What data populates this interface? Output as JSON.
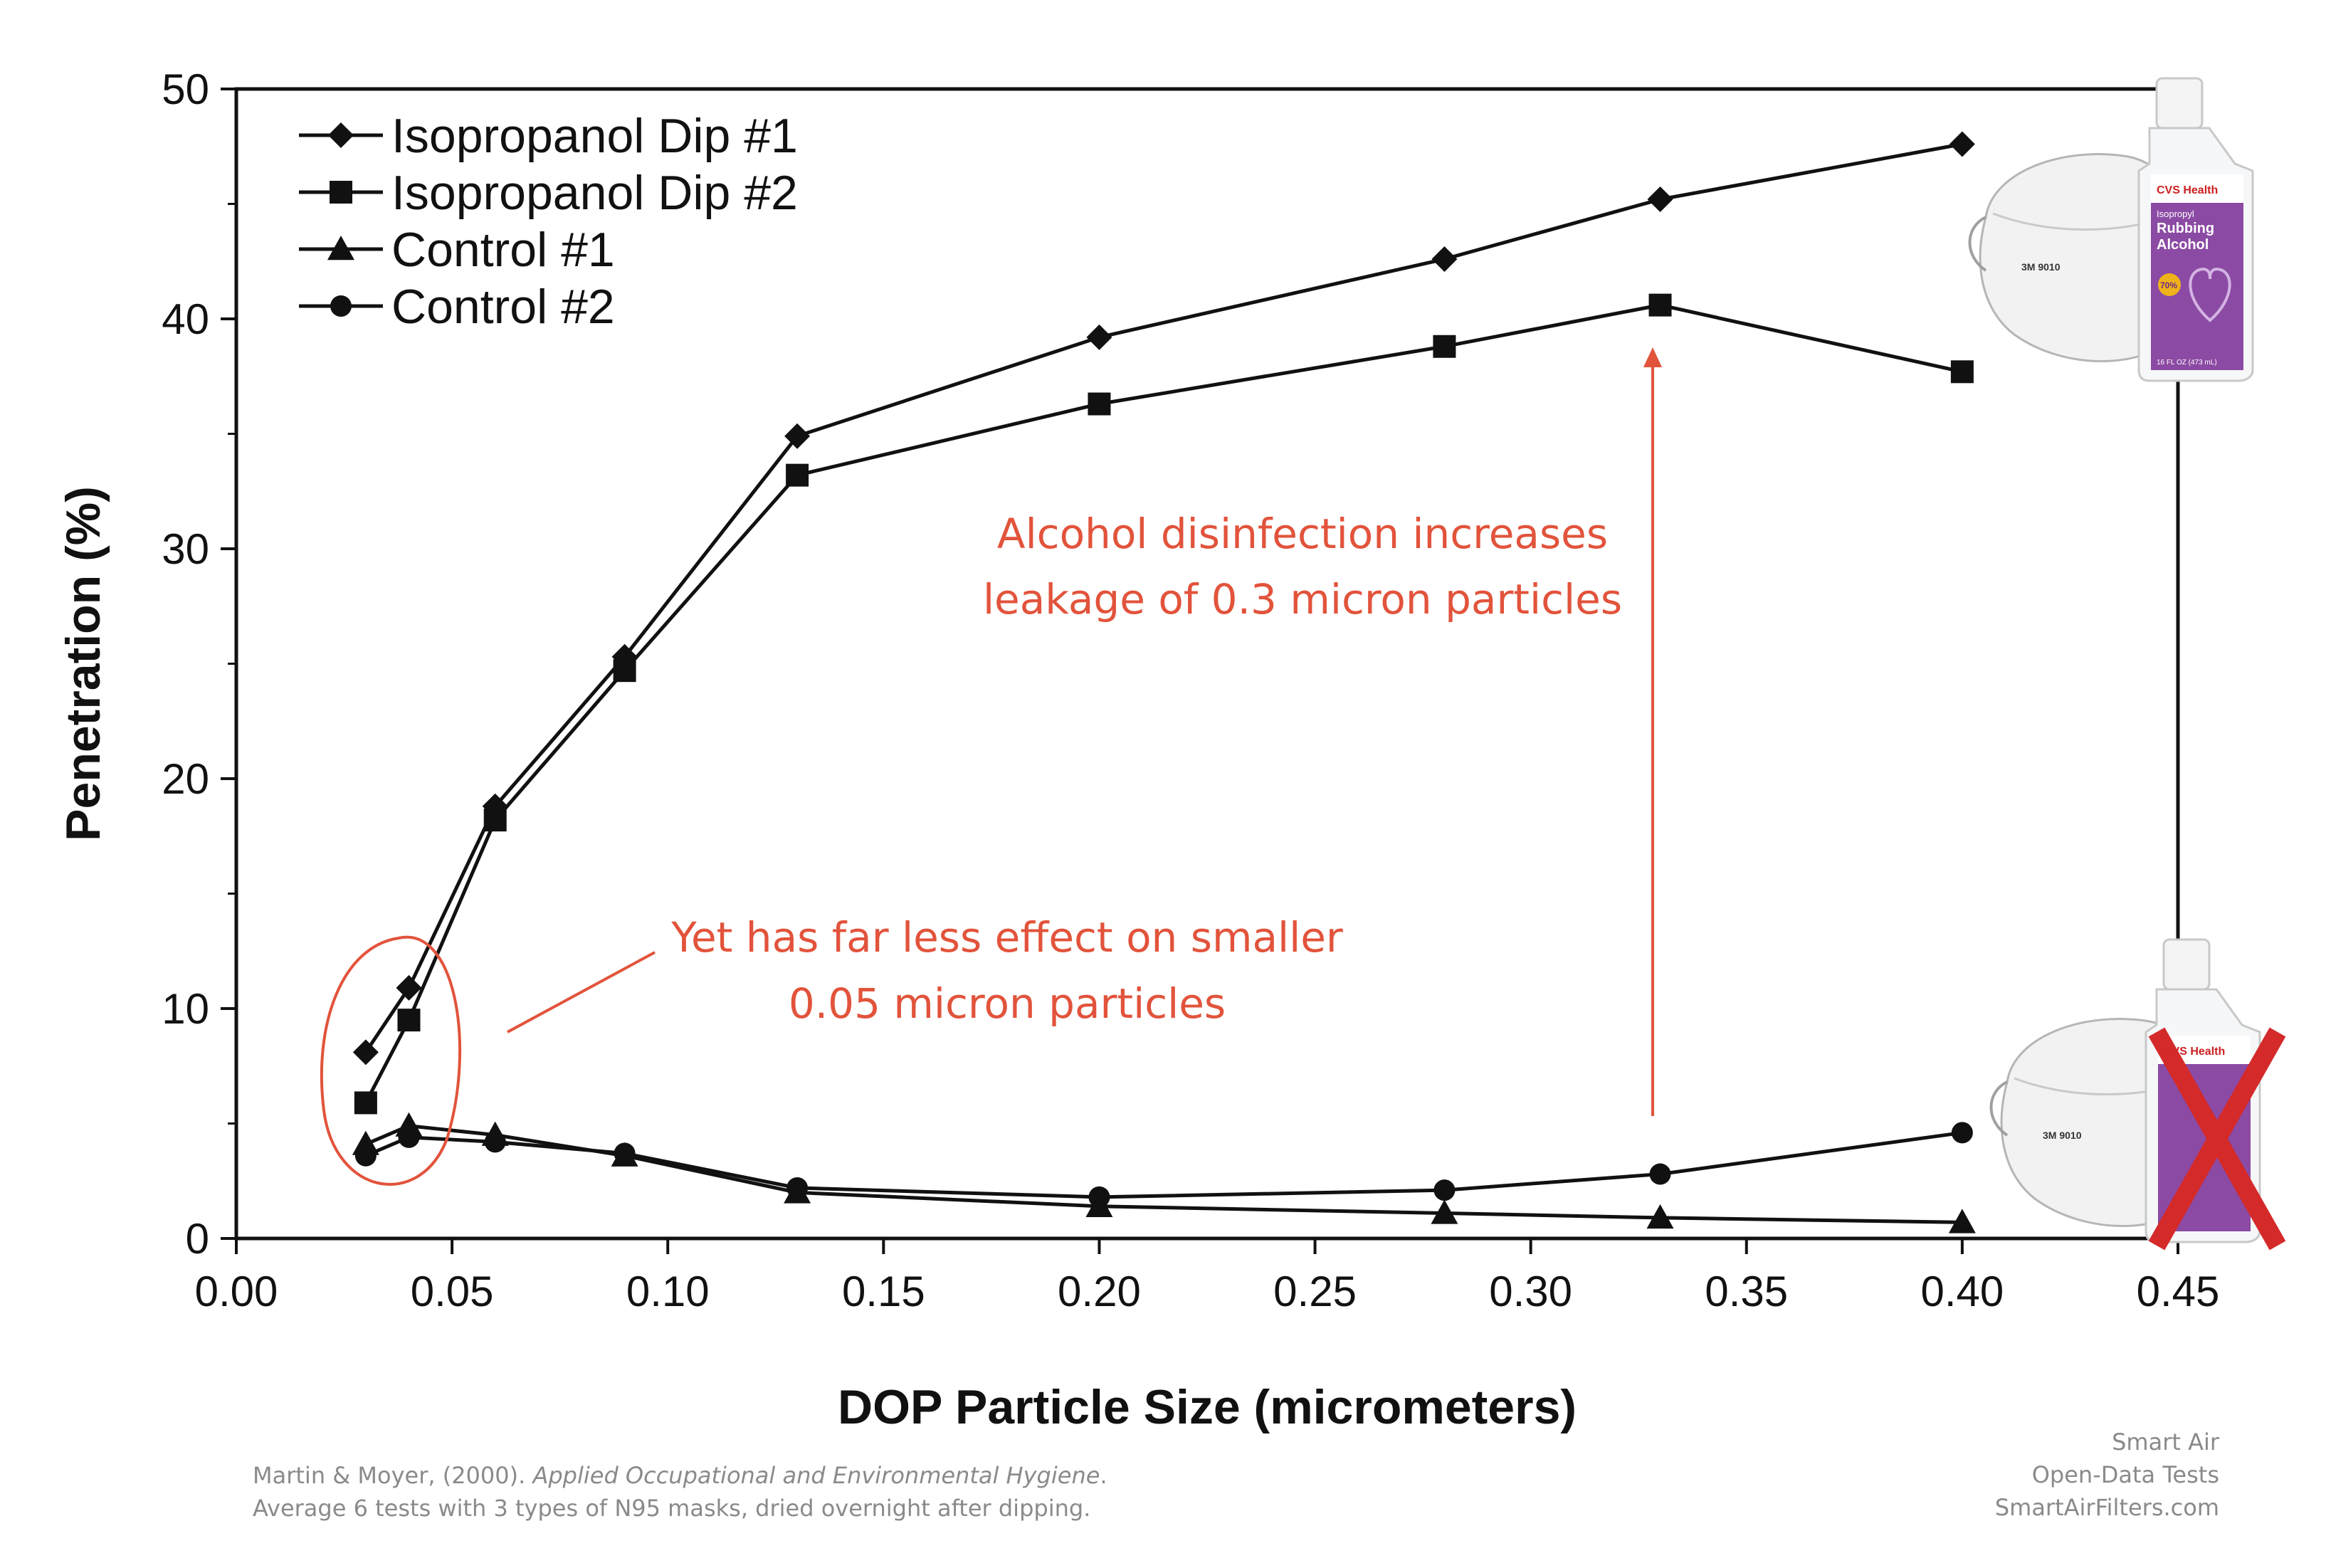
{
  "chart_data": {
    "type": "line",
    "xlabel": "DOP Particle Size (micrometers)",
    "ylabel": "Penetration (%)",
    "xlim": [
      0.0,
      0.45
    ],
    "ylim": [
      0,
      50
    ],
    "x_ticks": [
      "0.00",
      "0.05",
      "0.10",
      "0.15",
      "0.20",
      "0.25",
      "0.30",
      "0.35",
      "0.40",
      "0.45"
    ],
    "y_ticks": [
      "0",
      "10",
      "20",
      "30",
      "40",
      "50"
    ],
    "grid": false,
    "legend_position": "top-left",
    "series": [
      {
        "name": "Isopropanol Dip #1",
        "marker": "diamond",
        "x": [
          0.03,
          0.04,
          0.06,
          0.09,
          0.13,
          0.2,
          0.28,
          0.33,
          0.4
        ],
        "y": [
          8.1,
          10.9,
          18.8,
          25.3,
          34.9,
          39.2,
          42.6,
          45.2,
          47.6
        ]
      },
      {
        "name": "Isopropanol Dip #2",
        "marker": "square",
        "x": [
          0.03,
          0.04,
          0.06,
          0.09,
          0.13,
          0.2,
          0.28,
          0.33,
          0.4
        ],
        "y": [
          5.9,
          9.5,
          18.2,
          24.7,
          33.2,
          36.3,
          38.8,
          40.6,
          37.7
        ]
      },
      {
        "name": "Control #1",
        "marker": "triangle",
        "x": [
          0.03,
          0.04,
          0.06,
          0.09,
          0.13,
          0.2,
          0.28,
          0.33,
          0.4
        ],
        "y": [
          4.1,
          4.9,
          4.5,
          3.6,
          2.0,
          1.4,
          1.1,
          0.9,
          0.7
        ]
      },
      {
        "name": "Control #2",
        "marker": "circle",
        "x": [
          0.03,
          0.04,
          0.06,
          0.09,
          0.13,
          0.2,
          0.28,
          0.33,
          0.4
        ],
        "y": [
          3.6,
          4.4,
          4.2,
          3.7,
          2.2,
          1.8,
          2.1,
          2.8,
          4.6
        ]
      }
    ],
    "annotations": [
      {
        "lines": [
          "Alcohol disinfection increases",
          "leakage of 0.3 micron particles"
        ],
        "color": "#e2533b"
      },
      {
        "lines": [
          "Yet has far less effect on smaller",
          "0.05 micron particles"
        ],
        "color": "#e2533b"
      }
    ]
  },
  "images": {
    "top_right": {
      "mask_label": "3M 9010",
      "bottle_brand": "CVS Health",
      "bottle_lines": [
        "Isopropyl",
        "Rubbing",
        "Alcohol"
      ],
      "bottle_percent": "70%",
      "bottle_volume": "16 FL OZ (473 mL)"
    },
    "bottom_right": {
      "mask_label": "3M 9010",
      "bottle_brand": "CVS Health",
      "crossed_out": true,
      "cross_color": "#d42a2a"
    }
  },
  "footer": {
    "citation_authors": "Martin & Moyer, (2000). ",
    "citation_journal": "Applied Occupational and Environmental Hygiene",
    "citation_end": ".",
    "citation_note": "Average 6 tests with 3 types of N95 masks, dried overnight after dipping.",
    "brand_line1": "Smart Air",
    "brand_line2": "Open-Data Tests",
    "brand_line3": "SmartAirFilters.com"
  }
}
